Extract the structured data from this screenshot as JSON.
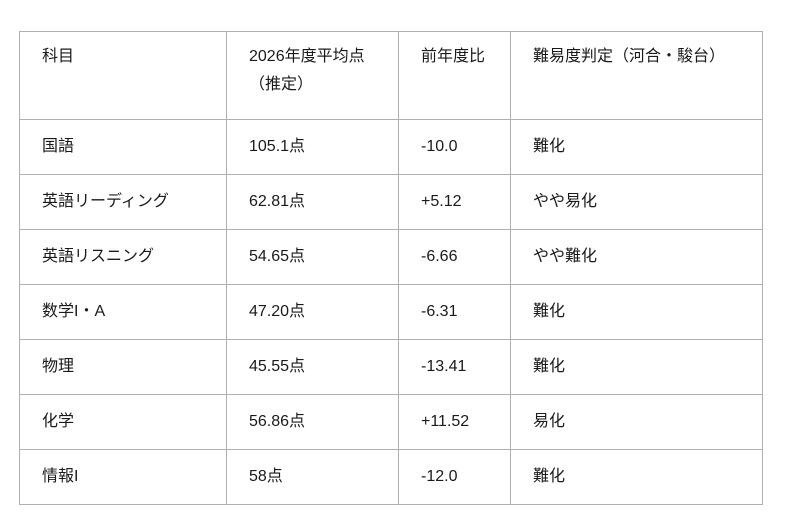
{
  "chart_data": {
    "type": "table",
    "columns": [
      "科目",
      "2026年度平均点（推定）",
      "前年度比",
      "難易度判定（河合・駿台）"
    ],
    "rows": [
      [
        "国語",
        "105.1点",
        "-10.0",
        "難化"
      ],
      [
        "英語リーディング",
        "62.81点",
        "+5.12",
        "やや易化"
      ],
      [
        "英語リスニング",
        "54.65点",
        "-6.66",
        "やや難化"
      ],
      [
        "数学I・A",
        "47.20点",
        "-6.31",
        "難化"
      ],
      [
        "物理",
        "45.55点",
        "-13.41",
        "難化"
      ],
      [
        "化学",
        "56.86点",
        "+11.52",
        "易化"
      ],
      [
        "情報I",
        "58点",
        "-12.0",
        "難化"
      ]
    ]
  },
  "header": {
    "subject": "科目",
    "average_line1": "2026年度平均点",
    "average_line2": "（推定）",
    "yoy": "前年度比",
    "difficulty": "難易度判定（河合・駿台）"
  },
  "style": {
    "background": "#ffffff",
    "border_color": "#b0b0b0",
    "text_color": "#1a1a1a"
  }
}
